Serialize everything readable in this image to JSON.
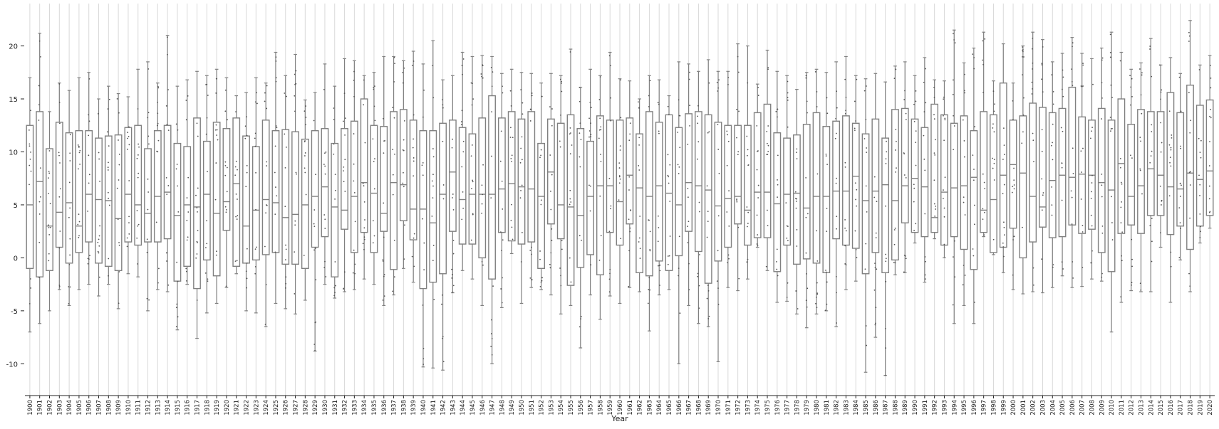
{
  "chart_data": {
    "type": "box",
    "xlabel": "Year",
    "ylabel": "",
    "ylim": [
      -13,
      24
    ],
    "yticks": [
      -10,
      -5,
      0,
      5,
      10,
      15,
      20
    ],
    "grid": {
      "vertical": true,
      "horizontal": false
    },
    "colors": {
      "box": "#808080",
      "grid": "#d9d9d9",
      "point": "#555555",
      "axis": "#222222"
    },
    "categories": [
      "1900",
      "1901",
      "1902",
      "1903",
      "1904",
      "1905",
      "1906",
      "1907",
      "1908",
      "1909",
      "1910",
      "1911",
      "1912",
      "1913",
      "1914",
      "1915",
      "1916",
      "1917",
      "1918",
      "1919",
      "1920",
      "1921",
      "1922",
      "1923",
      "1924",
      "1925",
      "1926",
      "1927",
      "1928",
      "1929",
      "1930",
      "1931",
      "1932",
      "1933",
      "1934",
      "1935",
      "1936",
      "1937",
      "1938",
      "1939",
      "1940",
      "1941",
      "1942",
      "1943",
      "1944",
      "1945",
      "1946",
      "1947",
      "1948",
      "1949",
      "1950",
      "1951",
      "1952",
      "1953",
      "1954",
      "1955",
      "1956",
      "1957",
      "1958",
      "1959",
      "1960",
      "1961",
      "1962",
      "1963",
      "1964",
      "1965",
      "1966",
      "1967",
      "1968",
      "1969",
      "1970",
      "1971",
      "1972",
      "1973",
      "1974",
      "1975",
      "1976",
      "1977",
      "1978",
      "1979",
      "1980",
      "1981",
      "1982",
      "1983",
      "1984",
      "1985",
      "1986",
      "1987",
      "1988",
      "1989",
      "1990",
      "1991",
      "1992",
      "1993",
      "1994",
      "1995",
      "1996",
      "1997",
      "1998",
      "1999",
      "2000",
      "2001",
      "2002",
      "2003",
      "2004",
      "2005",
      "2006",
      "2007",
      "2008",
      "2009",
      "2010",
      "2011",
      "2012",
      "2013",
      "2014",
      "2015",
      "2016",
      "2017",
      "2018",
      "2019",
      "2020"
    ],
    "boxes": [
      [
        -7.0,
        -1.0,
        5.0,
        12.5,
        17.0
      ],
      [
        -6.2,
        -1.8,
        7.2,
        13.8,
        21.2
      ],
      [
        -5.0,
        -1.2,
        3.0,
        10.3,
        13.8
      ],
      [
        -3.0,
        1.0,
        4.3,
        12.8,
        16.5
      ],
      [
        -4.5,
        -0.5,
        5.2,
        11.8,
        15.8
      ],
      [
        -3.0,
        0.5,
        3.0,
        12.0,
        17.0
      ],
      [
        -2.5,
        1.5,
        6.0,
        12.0,
        17.5
      ],
      [
        -3.6,
        -0.5,
        5.5,
        11.3,
        15.0
      ],
      [
        -2.5,
        -0.8,
        5.4,
        11.5,
        16.2
      ],
      [
        -4.8,
        -1.2,
        3.7,
        11.6,
        15.5
      ],
      [
        -1.5,
        1.5,
        6.0,
        12.3,
        15.2
      ],
      [
        -1.8,
        1.2,
        5.0,
        12.5,
        17.8
      ],
      [
        -5.0,
        1.5,
        4.2,
        10.3,
        18.5
      ],
      [
        -3.0,
        1.5,
        5.8,
        12.0,
        16.5
      ],
      [
        -3.2,
        1.8,
        6.2,
        12.5,
        21.0
      ],
      [
        -6.8,
        -2.2,
        4.0,
        10.8,
        16.2
      ],
      [
        -2.5,
        -0.8,
        5.0,
        10.5,
        16.8
      ],
      [
        -7.6,
        -2.9,
        4.8,
        13.2,
        17.6
      ],
      [
        -5.2,
        -0.2,
        6.0,
        11.0,
        17.2
      ],
      [
        -4.3,
        -1.7,
        4.2,
        12.8,
        17.8
      ],
      [
        -2.8,
        2.6,
        5.3,
        12.2,
        17.0
      ],
      [
        -1.5,
        -0.8,
        7.0,
        13.2,
        15.3
      ],
      [
        -5.0,
        -0.5,
        3.0,
        11.5,
        15.6
      ],
      [
        -5.2,
        -0.2,
        4.5,
        10.5,
        17.0
      ],
      [
        -6.5,
        0.3,
        5.5,
        13.0,
        16.5
      ],
      [
        -4.3,
        0.5,
        5.2,
        12.0,
        19.4
      ],
      [
        -4.8,
        -0.6,
        3.8,
        12.1,
        17.2
      ],
      [
        -5.3,
        -0.6,
        4.1,
        11.9,
        19.2
      ],
      [
        -4.0,
        -1.0,
        5.0,
        11.2,
        14.9
      ],
      [
        -8.8,
        1.0,
        5.8,
        12.0,
        15.6
      ],
      [
        -2.5,
        2.0,
        6.7,
        12.2,
        18.3
      ],
      [
        -3.8,
        -1.8,
        4.8,
        10.8,
        16.2
      ],
      [
        -3.2,
        2.7,
        4.5,
        12.2,
        18.8
      ],
      [
        -3.0,
        0.5,
        5.8,
        12.9,
        18.6
      ],
      [
        -2.0,
        2.4,
        7.1,
        15.0,
        17.2
      ],
      [
        -2.5,
        0.5,
        6.1,
        12.5,
        17.5
      ],
      [
        -4.5,
        2.5,
        4.2,
        12.4,
        19.0
      ],
      [
        -3.5,
        -1.1,
        7.1,
        13.8,
        19.0
      ],
      [
        -1.0,
        3.5,
        6.9,
        14.0,
        18.6
      ],
      [
        -2.3,
        1.7,
        4.6,
        13.0,
        19.5
      ],
      [
        -10.3,
        -2.9,
        4.6,
        12.0,
        18.3
      ],
      [
        -10.4,
        -2.3,
        3.3,
        12.0,
        20.5
      ],
      [
        -10.6,
        -1.5,
        6.0,
        12.7,
        16.8
      ],
      [
        -3.3,
        2.5,
        8.1,
        13.0,
        17.2
      ],
      [
        -1.2,
        1.3,
        5.5,
        12.3,
        19.4
      ],
      [
        -2.0,
        1.3,
        6.0,
        11.7,
        19.0
      ],
      [
        -4.5,
        0.0,
        6.0,
        13.2,
        19.1
      ],
      [
        -10.0,
        -2.0,
        6.0,
        15.3,
        19.0
      ],
      [
        -4.7,
        2.4,
        6.5,
        13.2,
        17.4
      ],
      [
        0.4,
        1.6,
        7.0,
        13.8,
        17.8
      ],
      [
        -4.3,
        1.3,
        6.7,
        13.1,
        17.5
      ],
      [
        -2.8,
        1.5,
        6.5,
        13.8,
        17.4
      ],
      [
        -3.0,
        -1.0,
        5.8,
        10.8,
        16.5
      ],
      [
        -3.5,
        3.2,
        8.1,
        13.1,
        17.4
      ],
      [
        -5.3,
        1.8,
        5.0,
        12.7,
        17.2
      ],
      [
        -4.5,
        -2.6,
        4.8,
        13.5,
        19.7
      ],
      [
        -8.5,
        -0.9,
        4.0,
        12.2,
        16.1
      ],
      [
        -3.5,
        0.3,
        5.8,
        11.0,
        17.8
      ],
      [
        -5.8,
        -1.6,
        6.8,
        13.4,
        17.2
      ],
      [
        -3.6,
        2.4,
        6.8,
        13.0,
        19.4
      ],
      [
        -4.3,
        1.2,
        5.3,
        13.0,
        16.9
      ],
      [
        -2.8,
        3.2,
        7.8,
        13.2,
        16.7
      ],
      [
        -3.2,
        -1.4,
        6.6,
        11.7,
        15.0
      ],
      [
        -6.9,
        -1.7,
        5.8,
        13.8,
        17.2
      ],
      [
        -3.5,
        -0.3,
        6.8,
        12.8,
        16.8
      ],
      [
        -3.0,
        -1.2,
        6.1,
        13.5,
        15.3
      ],
      [
        -10.0,
        0.2,
        5.0,
        12.3,
        18.5
      ],
      [
        -4.5,
        2.5,
        7.1,
        13.6,
        18.3
      ],
      [
        -6.2,
        0.6,
        6.8,
        13.8,
        17.6
      ],
      [
        -6.5,
        -2.4,
        6.4,
        13.5,
        18.7
      ],
      [
        -9.8,
        -0.3,
        4.9,
        12.8,
        17.6
      ],
      [
        -2.8,
        1.0,
        5.6,
        12.5,
        17.6
      ],
      [
        -3.1,
        3.2,
        5.8,
        12.5,
        20.2
      ],
      [
        -2.0,
        1.2,
        4.5,
        12.5,
        20.0
      ],
      [
        1.0,
        1.9,
        6.2,
        13.7,
        16.4
      ],
      [
        -1.2,
        1.9,
        6.2,
        14.5,
        19.6
      ],
      [
        -4.2,
        -1.3,
        5.1,
        11.8,
        17.6
      ],
      [
        -4.1,
        1.2,
        6.0,
        11.3,
        17.2
      ],
      [
        -5.3,
        -0.6,
        6.1,
        11.6,
        15.9
      ],
      [
        -6.6,
        -0.1,
        4.7,
        12.6,
        17.5
      ],
      [
        -5.3,
        -0.5,
        5.8,
        13.7,
        17.8
      ],
      [
        -5.0,
        -1.4,
        5.8,
        12.4,
        17.5
      ],
      [
        -6.5,
        1.8,
        6.3,
        12.9,
        18.5
      ],
      [
        -3.0,
        1.2,
        6.3,
        13.4,
        19.0
      ],
      [
        -2.2,
        0.9,
        7.7,
        12.7,
        17.2
      ],
      [
        -10.8,
        -1.5,
        5.4,
        11.7,
        16.9
      ],
      [
        -7.5,
        0.5,
        6.3,
        13.1,
        17.4
      ],
      [
        -11.1,
        -1.4,
        6.9,
        11.3,
        16.6
      ],
      [
        -1.6,
        -0.2,
        5.4,
        14.0,
        18.1
      ],
      [
        -1.4,
        3.3,
        6.8,
        14.1,
        18.5
      ],
      [
        1.4,
        2.4,
        7.5,
        13.1,
        17.2
      ],
      [
        -2.3,
        2.0,
        6.7,
        12.3,
        18.9
      ],
      [
        1.8,
        2.4,
        3.8,
        14.5,
        16.8
      ],
      [
        0.0,
        1.2,
        6.2,
        13.5,
        16.7
      ],
      [
        -6.2,
        2.0,
        6.6,
        12.7,
        21.5
      ],
      [
        -4.5,
        0.8,
        6.8,
        13.4,
        18.4
      ],
      [
        -6.2,
        -1.1,
        7.6,
        12.0,
        19.8
      ],
      [
        2.0,
        2.4,
        4.5,
        13.8,
        21.3
      ],
      [
        0.3,
        0.5,
        5.5,
        13.5,
        16.7
      ],
      [
        -1.4,
        1.0,
        7.8,
        16.5,
        20.2
      ],
      [
        -3.0,
        2.8,
        8.8,
        13.0,
        16.5
      ],
      [
        -3.4,
        0.0,
        8.0,
        13.4,
        20.0
      ],
      [
        -3.2,
        1.5,
        5.8,
        14.6,
        21.3
      ],
      [
        -3.3,
        2.9,
        4.8,
        14.2,
        20.6
      ],
      [
        -2.8,
        1.9,
        7.3,
        13.7,
        18.5
      ],
      [
        -1.7,
        2.0,
        7.8,
        14.1,
        19.3
      ],
      [
        -2.8,
        3.1,
        7.6,
        16.1,
        20.8
      ],
      [
        -2.7,
        2.3,
        7.9,
        13.3,
        19.3
      ],
      [
        -2.0,
        2.7,
        7.8,
        13.0,
        18.8
      ],
      [
        -2.2,
        0.5,
        7.1,
        14.1,
        19.8
      ],
      [
        -7.0,
        -1.3,
        6.4,
        13.0,
        21.3
      ],
      [
        -4.2,
        2.3,
        8.9,
        15.0,
        19.4
      ],
      [
        -3.1,
        3.1,
        5.8,
        12.6,
        17.8
      ],
      [
        -3.2,
        2.3,
        6.8,
        14.0,
        18.4
      ],
      [
        -3.2,
        4.0,
        8.4,
        13.8,
        20.7
      ],
      [
        1.0,
        4.0,
        7.8,
        13.8,
        18.2
      ],
      [
        -4.2,
        2.2,
        6.7,
        15.6,
        18.9
      ],
      [
        -0.2,
        3.0,
        6.5,
        13.7,
        17.4
      ],
      [
        -3.2,
        0.8,
        8.0,
        16.3,
        22.4
      ],
      [
        1.4,
        3.0,
        7.4,
        14.4,
        18.2
      ],
      [
        2.8,
        4.0,
        8.2,
        14.9,
        19.1
      ]
    ]
  }
}
